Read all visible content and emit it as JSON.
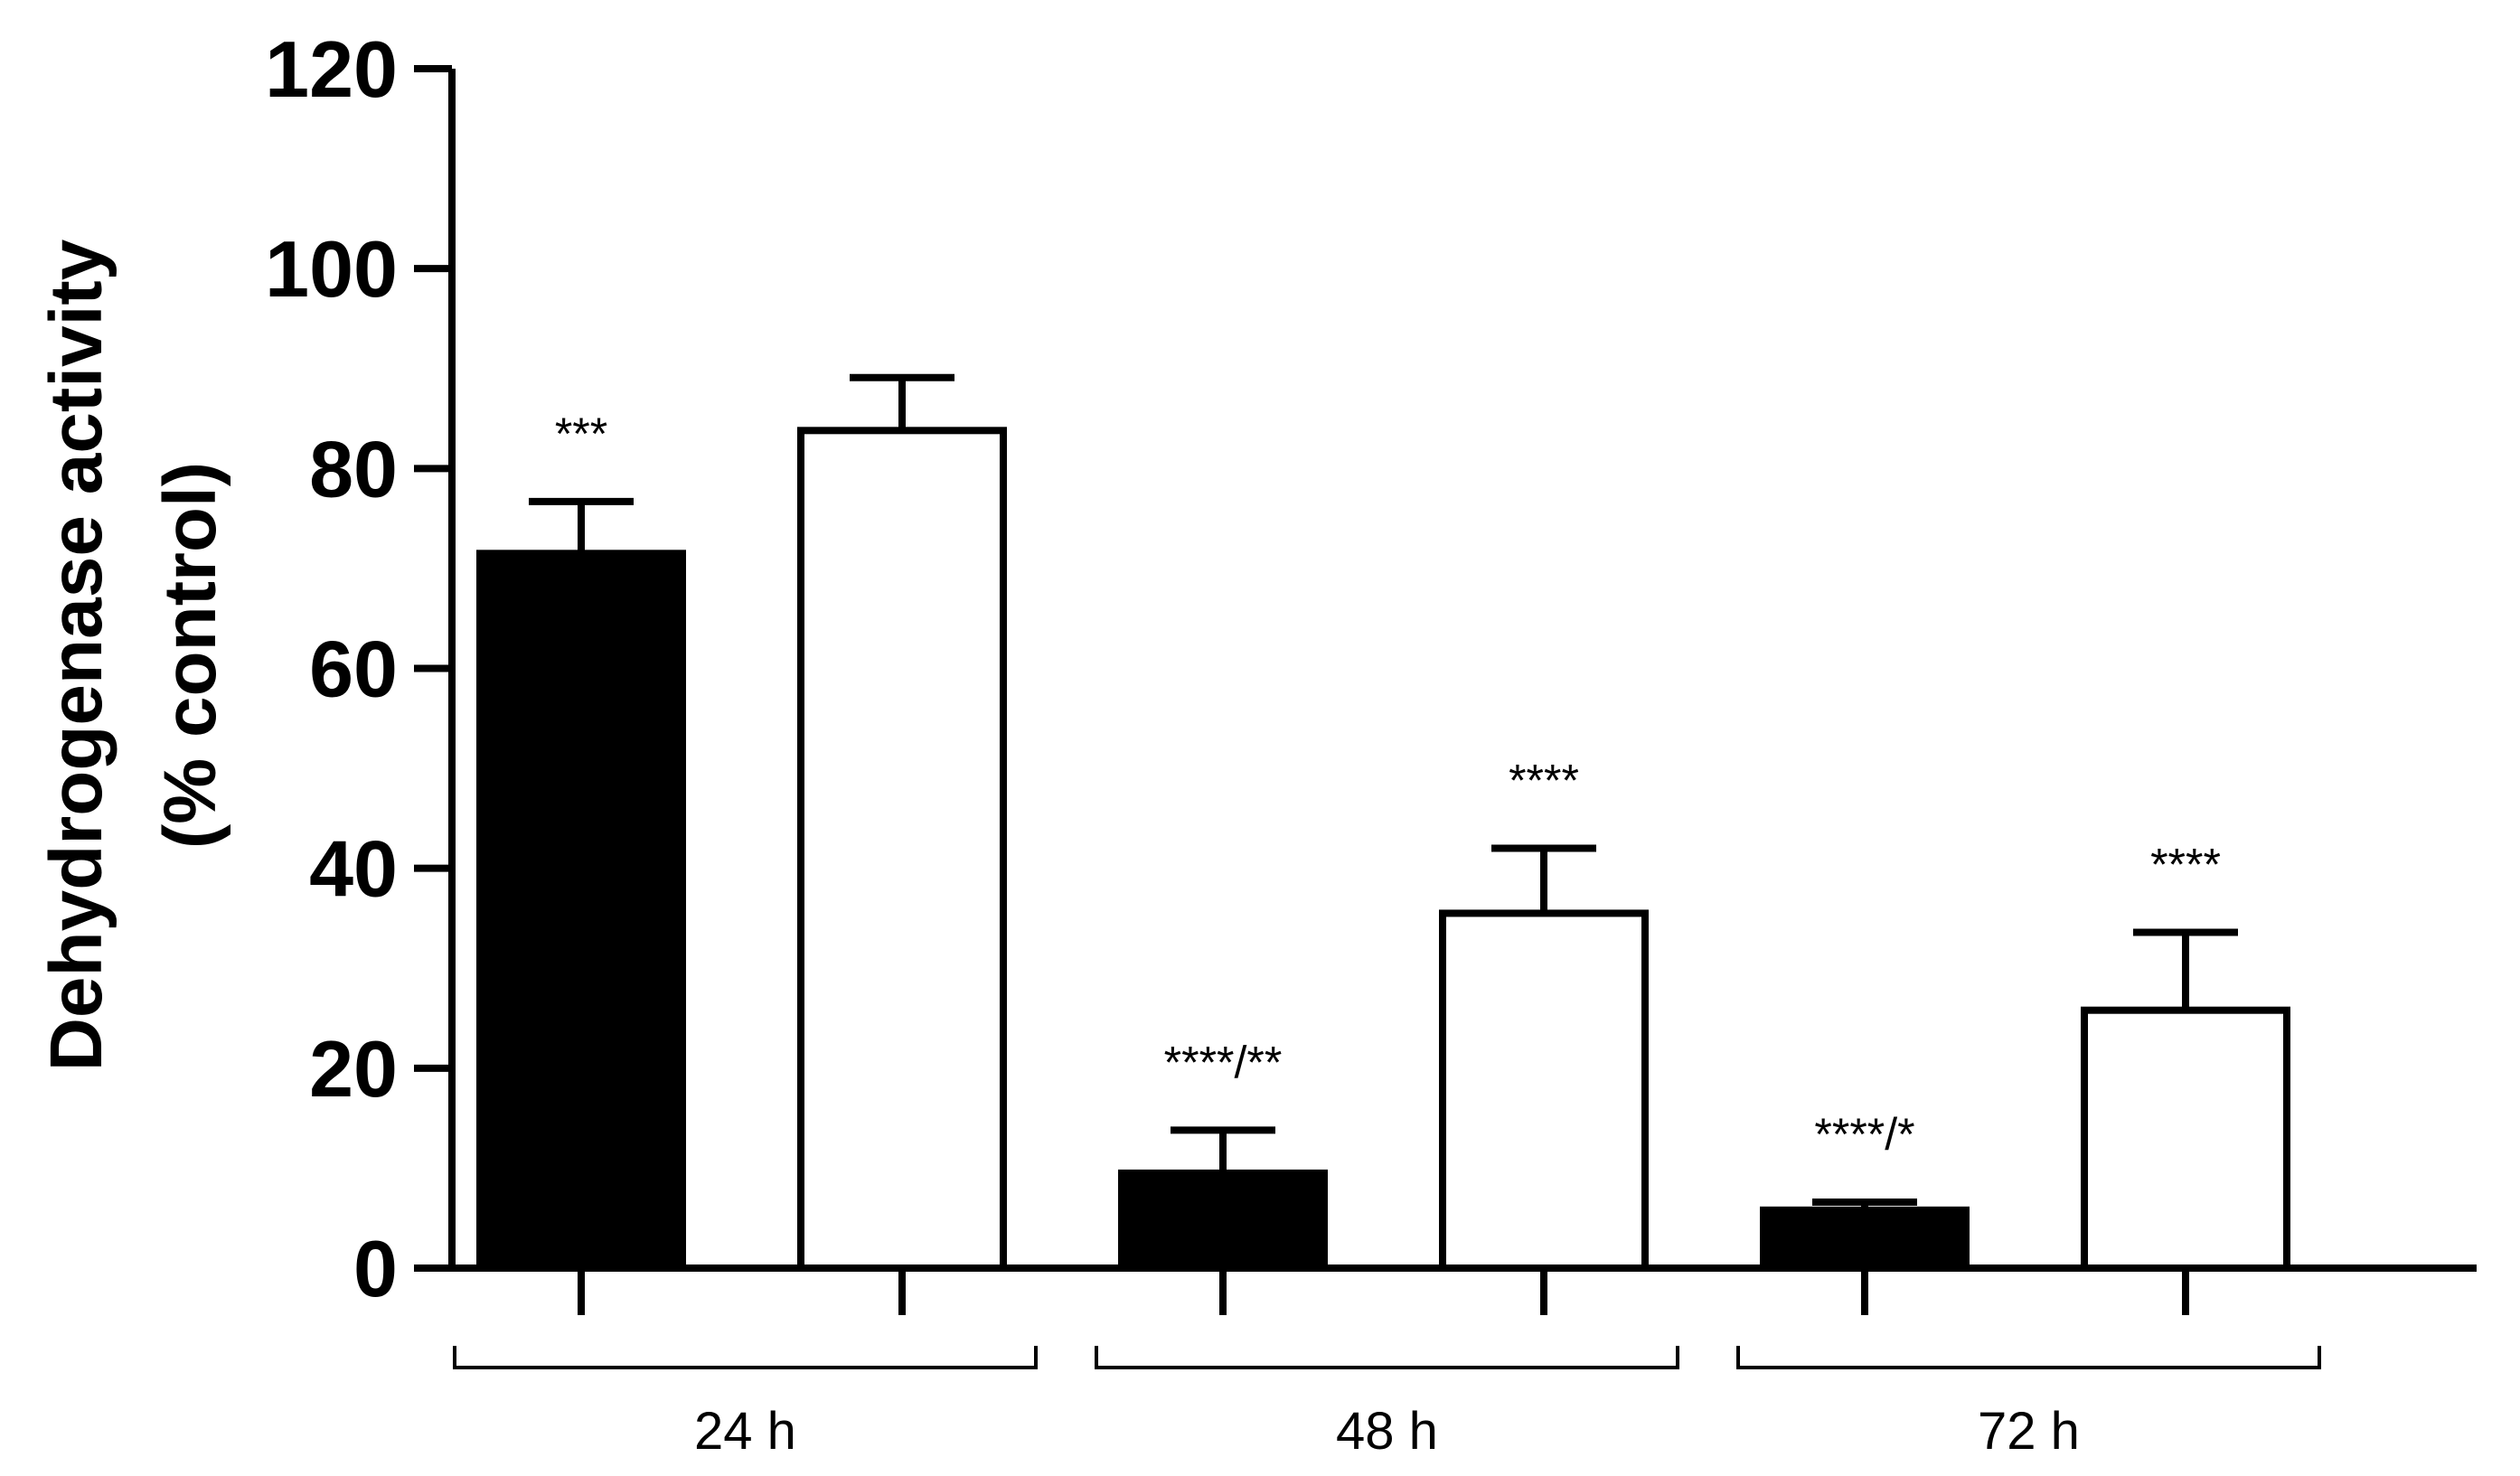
{
  "chart_data": {
    "type": "bar",
    "title": "",
    "ylabel_line1": "Dehydrogenase activity",
    "ylabel_line2": "(% control)",
    "xlabel": "",
    "ylim": [
      0,
      120
    ],
    "yticks": [
      "0",
      "20",
      "40",
      "60",
      "80",
      "100",
      "120"
    ],
    "groups": [
      "24 h",
      "48 h",
      "72 h"
    ],
    "series": [
      {
        "fill": "#000000",
        "values": [
          71.5,
          9.5,
          5.8
        ],
        "errors": [
          5.2,
          4.3,
          0.8
        ],
        "annotations": [
          "***",
          "****/**",
          "****/*"
        ]
      },
      {
        "fill": "#ffffff",
        "values": [
          83.8,
          35.5,
          25.8
        ],
        "errors": [
          5.3,
          6.5,
          7.8
        ],
        "annotations": [
          "",
          "****",
          "****"
        ]
      }
    ],
    "legend": "none",
    "grid": false
  }
}
